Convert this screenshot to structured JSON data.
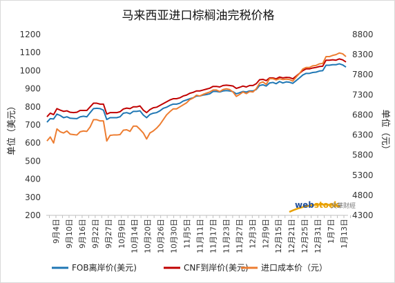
{
  "chart_data": {
    "type": "line",
    "title": "马来西亚进口棕榈油完税价格",
    "ylabel_left": "单位（美元）",
    "ylabel_right": "单位（元）",
    "ylim_left": [
      200,
      1200
    ],
    "yticks_left": [
      200,
      300,
      400,
      500,
      600,
      700,
      800,
      900,
      1000,
      1100,
      1200
    ],
    "ylim_right": [
      4300,
      8800
    ],
    "yticks_right": [
      4300,
      4800,
      5300,
      5800,
      6300,
      6800,
      7300,
      7800,
      8300,
      8800
    ],
    "x_tick_labels": [
      "9月4日",
      "9月10日",
      "9月16日",
      "9月22日",
      "9月27日",
      "10月9日",
      "10月14日",
      "10月20日",
      "10月26日",
      "10月30日",
      "11月5日",
      "11月11日",
      "11月17日",
      "11月23日",
      "11月27日",
      "12月3日",
      "12月9日",
      "12月15日",
      "12月21日",
      "12月25日",
      "12月31日",
      "1月7日",
      "1月13日"
    ],
    "grid": false,
    "legend_position": "bottom",
    "series": [
      {
        "name": "FOB离岸价(美元)",
        "color": "#1f77b4",
        "axis": "left",
        "values": [
          715,
          735,
          733,
          760,
          752,
          740,
          745,
          737,
          736,
          735,
          745,
          748,
          745,
          768,
          790,
          792,
          790,
          782,
          730,
          740,
          740,
          740,
          745,
          765,
          768,
          762,
          775,
          775,
          778,
          755,
          740,
          758,
          765,
          768,
          778,
          792,
          798,
          808,
          815,
          815,
          820,
          832,
          838,
          845,
          850,
          860,
          860,
          865,
          868,
          872,
          885,
          885,
          882,
          888,
          890,
          888,
          884,
          872,
          878,
          885,
          882,
          888,
          888,
          896,
          918,
          922,
          915,
          932,
          935,
          928,
          940,
          932,
          938,
          936,
          930,
          945,
          960,
          976,
          985,
          985,
          990,
          992,
          998,
          1000,
          1030,
          1030,
          1033,
          1033,
          1038,
          1032,
          1020
        ]
      },
      {
        "name": "CNF到岸价(美元)",
        "color": "#c00000",
        "axis": "left",
        "values": [
          745,
          765,
          757,
          790,
          782,
          775,
          778,
          770,
          768,
          770,
          780,
          780,
          780,
          800,
          820,
          820,
          815,
          815,
          760,
          768,
          768,
          768,
          773,
          788,
          793,
          790,
          800,
          800,
          805,
          782,
          768,
          785,
          795,
          798,
          808,
          818,
          828,
          838,
          845,
          845,
          850,
          860,
          865,
          875,
          880,
          888,
          888,
          893,
          898,
          903,
          913,
          913,
          910,
          918,
          920,
          918,
          915,
          902,
          908,
          915,
          910,
          918,
          918,
          928,
          950,
          952,
          945,
          960,
          960,
          955,
          965,
          960,
          963,
          962,
          955,
          970,
          985,
          1000,
          1010,
          1010,
          1015,
          1018,
          1023,
          1025,
          1058,
          1058,
          1060,
          1058,
          1065,
          1060,
          1048
        ]
      },
      {
        "name": "进口成本价（元）",
        "color": "#ed7d31",
        "axis": "right",
        "values": [
          6150,
          6250,
          6100,
          6450,
          6380,
          6350,
          6400,
          6320,
          6310,
          6300,
          6380,
          6400,
          6390,
          6500,
          6680,
          6680,
          6650,
          6650,
          6150,
          6290,
          6300,
          6300,
          6310,
          6420,
          6430,
          6390,
          6520,
          6520,
          6440,
          6350,
          6200,
          6350,
          6400,
          6470,
          6560,
          6680,
          6800,
          6880,
          6950,
          6950,
          7000,
          7050,
          7100,
          7180,
          7220,
          7290,
          7270,
          7310,
          7340,
          7370,
          7420,
          7420,
          7380,
          7430,
          7450,
          7430,
          7370,
          7260,
          7310,
          7370,
          7330,
          7380,
          7370,
          7450,
          7590,
          7620,
          7560,
          7700,
          7700,
          7670,
          7700,
          7680,
          7690,
          7680,
          7640,
          7740,
          7830,
          7940,
          7980,
          7980,
          8020,
          8030,
          8070,
          8080,
          8250,
          8250,
          8280,
          8300,
          8340,
          8320,
          8250
        ]
      }
    ]
  },
  "watermark": {
    "brand_main": "web",
    "brand_accent": "stock",
    "brand_sub": "文華財經"
  }
}
